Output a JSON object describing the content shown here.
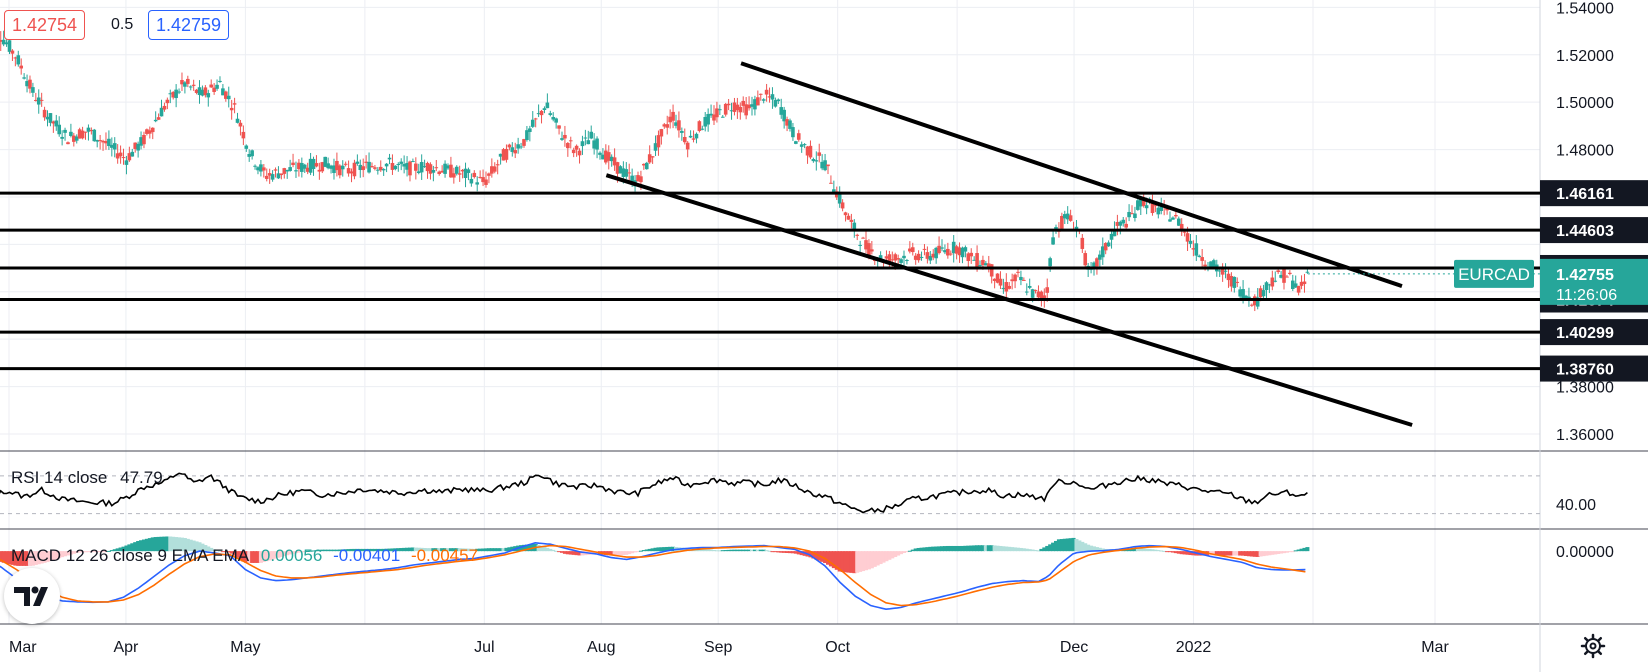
{
  "header": {
    "bid": "1.42754",
    "spread": "0.5",
    "ask": "1.42759"
  },
  "chart_data": {
    "type": "candlestick",
    "symbol": "EURCAD",
    "price_axis": {
      "ticks": [
        "1.54000",
        "1.52000",
        "1.50000",
        "1.48000",
        "1.38000",
        "1.36000"
      ],
      "ylim": [
        1.3562,
        1.5431
      ]
    },
    "time_axis": {
      "labels": [
        "Mar",
        "Apr",
        "May",
        "Jul",
        "Aug",
        "Sep",
        "Oct",
        "Dec",
        "2022",
        "Mar"
      ],
      "domain": [
        0,
        355
      ],
      "label_positions": [
        9,
        55,
        102,
        196,
        242,
        288,
        335,
        428,
        475,
        570
      ]
    },
    "horizontal_levels": [
      "1.46161",
      "1.44603",
      "1.43004",
      "1.41674",
      "1.40299",
      "1.38760"
    ],
    "current_price": {
      "symbol": "EURCAD",
      "price": "1.42755",
      "countdown": "11:26:06"
    },
    "trendlines": [
      {
        "from": [
          297,
          1.5164
        ],
        "to": [
          557,
          1.4224
        ]
      },
      {
        "from": [
          244,
          1.4692
        ],
        "to": [
          561,
          1.3638
        ]
      }
    ],
    "price_path": [
      [
        0,
        1.532
      ],
      [
        6,
        1.528
      ],
      [
        12,
        1.519
      ],
      [
        18,
        1.505
      ],
      [
        25,
        1.493
      ],
      [
        32,
        1.485
      ],
      [
        40,
        1.488
      ],
      [
        48,
        1.482
      ],
      [
        55,
        1.476
      ],
      [
        62,
        1.484
      ],
      [
        70,
        1.498
      ],
      [
        78,
        1.508
      ],
      [
        85,
        1.503
      ],
      [
        92,
        1.508
      ],
      [
        98,
        1.497
      ],
      [
        104,
        1.478
      ],
      [
        110,
        1.469
      ],
      [
        118,
        1.471
      ],
      [
        126,
        1.473
      ],
      [
        134,
        1.474
      ],
      [
        142,
        1.471
      ],
      [
        150,
        1.473
      ],
      [
        158,
        1.474
      ],
      [
        166,
        1.472
      ],
      [
        174,
        1.473
      ],
      [
        182,
        1.471
      ],
      [
        190,
        1.469
      ],
      [
        196,
        1.466
      ],
      [
        204,
        1.478
      ],
      [
        212,
        1.484
      ],
      [
        220,
        1.499
      ],
      [
        226,
        1.487
      ],
      [
        232,
        1.479
      ],
      [
        238,
        1.485
      ],
      [
        244,
        1.477
      ],
      [
        250,
        1.471
      ],
      [
        256,
        1.466
      ],
      [
        262,
        1.478
      ],
      [
        270,
        1.495
      ],
      [
        276,
        1.483
      ],
      [
        282,
        1.491
      ],
      [
        288,
        1.495
      ],
      [
        294,
        1.499
      ],
      [
        300,
        1.497
      ],
      [
        306,
        1.503
      ],
      [
        312,
        1.499
      ],
      [
        318,
        1.486
      ],
      [
        324,
        1.479
      ],
      [
        330,
        1.474
      ],
      [
        335,
        1.461
      ],
      [
        340,
        1.449
      ],
      [
        346,
        1.439
      ],
      [
        352,
        1.434
      ],
      [
        358,
        1.434
      ],
      [
        364,
        1.436
      ],
      [
        370,
        1.435
      ],
      [
        376,
        1.437
      ],
      [
        382,
        1.439
      ],
      [
        388,
        1.434
      ],
      [
        394,
        1.432
      ],
      [
        400,
        1.421
      ],
      [
        406,
        1.426
      ],
      [
        412,
        1.419
      ],
      [
        417,
        1.418
      ],
      [
        420,
        1.445
      ],
      [
        425,
        1.452
      ],
      [
        430,
        1.446
      ],
      [
        434,
        1.426
      ],
      [
        439,
        1.436
      ],
      [
        444,
        1.446
      ],
      [
        450,
        1.451
      ],
      [
        455,
        1.459
      ],
      [
        460,
        1.455
      ],
      [
        465,
        1.453
      ],
      [
        470,
        1.449
      ],
      [
        475,
        1.439
      ],
      [
        480,
        1.433
      ],
      [
        485,
        1.429
      ],
      [
        490,
        1.425
      ],
      [
        495,
        1.419
      ],
      [
        500,
        1.416
      ],
      [
        503,
        1.422
      ],
      [
        507,
        1.426
      ],
      [
        512,
        1.427
      ],
      [
        517,
        1.42
      ],
      [
        520,
        1.4275
      ]
    ],
    "rsi": {
      "label": "RSI 14 close",
      "value": "47.79",
      "ticks": [
        "40.00"
      ],
      "ylim": [
        20,
        90
      ],
      "bands": [
        30,
        70
      ],
      "path": [
        [
          0,
          46
        ],
        [
          8,
          54
        ],
        [
          15,
          48
        ],
        [
          22,
          55
        ],
        [
          30,
          45
        ],
        [
          40,
          42
        ],
        [
          50,
          41
        ],
        [
          55,
          47
        ],
        [
          62,
          58
        ],
        [
          70,
          63
        ],
        [
          76,
          74
        ],
        [
          82,
          62
        ],
        [
          88,
          70
        ],
        [
          94,
          58
        ],
        [
          100,
          47
        ],
        [
          108,
          43
        ],
        [
          116,
          50
        ],
        [
          124,
          54
        ],
        [
          132,
          50
        ],
        [
          140,
          52
        ],
        [
          148,
          56
        ],
        [
          156,
          54
        ],
        [
          164,
          52
        ],
        [
          172,
          55
        ],
        [
          180,
          53
        ],
        [
          188,
          56
        ],
        [
          196,
          54
        ],
        [
          204,
          58
        ],
        [
          212,
          63
        ],
        [
          218,
          72
        ],
        [
          224,
          62
        ],
        [
          232,
          58
        ],
        [
          240,
          60
        ],
        [
          248,
          53
        ],
        [
          256,
          51
        ],
        [
          262,
          60
        ],
        [
          270,
          68
        ],
        [
          276,
          60
        ],
        [
          282,
          64
        ],
        [
          288,
          66
        ],
        [
          294,
          62
        ],
        [
          300,
          63
        ],
        [
          306,
          60
        ],
        [
          312,
          66
        ],
        [
          318,
          60
        ],
        [
          324,
          52
        ],
        [
          330,
          48
        ],
        [
          335,
          42
        ],
        [
          340,
          36
        ],
        [
          346,
          32
        ],
        [
          352,
          34
        ],
        [
          358,
          38
        ],
        [
          364,
          45
        ],
        [
          370,
          47
        ],
        [
          376,
          50
        ],
        [
          382,
          52
        ],
        [
          388,
          54
        ],
        [
          394,
          55
        ],
        [
          400,
          49
        ],
        [
          406,
          50
        ],
        [
          412,
          48
        ],
        [
          417,
          46
        ],
        [
          420,
          63
        ],
        [
          425,
          64
        ],
        [
          430,
          62
        ],
        [
          434,
          55
        ],
        [
          439,
          59
        ],
        [
          444,
          63
        ],
        [
          450,
          66
        ],
        [
          455,
          67
        ],
        [
          460,
          65
        ],
        [
          465,
          61
        ],
        [
          470,
          60
        ],
        [
          475,
          56
        ],
        [
          480,
          54
        ],
        [
          485,
          52
        ],
        [
          490,
          50
        ],
        [
          495,
          44
        ],
        [
          500,
          42
        ],
        [
          503,
          48
        ],
        [
          507,
          51
        ],
        [
          512,
          52
        ],
        [
          517,
          49
        ],
        [
          520,
          50
        ]
      ]
    },
    "macd": {
      "label": "MACD 12 26 close 9 EMA EMA",
      "histogram_value": "0.00056",
      "macd_value": "-0.00401",
      "signal_value": "-0.00457",
      "ticks": [
        "0.00000"
      ],
      "ylim": [
        -0.0145,
        0.0035
      ],
      "series_colors": {
        "macd": "#2962ff",
        "signal": "#ff6d00",
        "hist_up": "#26a69a",
        "hist_down": "#ef5350"
      },
      "path_macd": [
        [
          0,
          -0.0015
        ],
        [
          6,
          -0.0035
        ],
        [
          12,
          -0.006
        ],
        [
          18,
          -0.0085
        ],
        [
          24,
          -0.01
        ],
        [
          30,
          -0.0108
        ],
        [
          36,
          -0.011
        ],
        [
          42,
          -0.0111
        ],
        [
          48,
          -0.011
        ],
        [
          54,
          -0.01
        ],
        [
          60,
          -0.008
        ],
        [
          66,
          -0.0055
        ],
        [
          72,
          -0.003
        ],
        [
          78,
          -0.001
        ],
        [
          84,
          0.0
        ],
        [
          90,
          -0.0004
        ],
        [
          96,
          -0.001
        ],
        [
          102,
          -0.004
        ],
        [
          108,
          -0.0058
        ],
        [
          114,
          -0.0064
        ],
        [
          120,
          -0.0062
        ],
        [
          126,
          -0.0058
        ],
        [
          132,
          -0.0054
        ],
        [
          138,
          -0.005
        ],
        [
          144,
          -0.0046
        ],
        [
          150,
          -0.0043
        ],
        [
          156,
          -0.004
        ],
        [
          162,
          -0.0036
        ],
        [
          168,
          -0.003
        ],
        [
          174,
          -0.0026
        ],
        [
          180,
          -0.0022
        ],
        [
          186,
          -0.0018
        ],
        [
          192,
          -0.0016
        ],
        [
          198,
          -0.001
        ],
        [
          204,
          -0.0004
        ],
        [
          210,
          0.0008
        ],
        [
          216,
          0.0018
        ],
        [
          222,
          0.0015
        ],
        [
          228,
          0.0006
        ],
        [
          234,
          -0.0002
        ],
        [
          240,
          -0.0006
        ],
        [
          246,
          -0.0014
        ],
        [
          252,
          -0.0018
        ],
        [
          258,
          -0.0012
        ],
        [
          264,
          -0.0004
        ],
        [
          270,
          0.0003
        ],
        [
          276,
          0.0006
        ],
        [
          282,
          0.0008
        ],
        [
          288,
          0.0008
        ],
        [
          294,
          0.001
        ],
        [
          300,
          0.0011
        ],
        [
          306,
          0.0012
        ],
        [
          312,
          0.0008
        ],
        [
          318,
          0.0004
        ],
        [
          324,
          -0.0008
        ],
        [
          330,
          -0.0032
        ],
        [
          336,
          -0.0068
        ],
        [
          342,
          -0.0098
        ],
        [
          348,
          -0.0118
        ],
        [
          354,
          -0.0126
        ],
        [
          360,
          -0.0122
        ],
        [
          366,
          -0.0112
        ],
        [
          372,
          -0.0104
        ],
        [
          378,
          -0.0096
        ],
        [
          384,
          -0.0088
        ],
        [
          390,
          -0.0078
        ],
        [
          396,
          -0.007
        ],
        [
          402,
          -0.0066
        ],
        [
          408,
          -0.0064
        ],
        [
          414,
          -0.0066
        ],
        [
          418,
          -0.0054
        ],
        [
          422,
          -0.003
        ],
        [
          428,
          -0.0004
        ],
        [
          434,
          0.0
        ],
        [
          440,
          0.0001
        ],
        [
          446,
          0.0004
        ],
        [
          452,
          0.001
        ],
        [
          458,
          0.0012
        ],
        [
          464,
          0.001
        ],
        [
          470,
          0.0004
        ],
        [
          476,
          -0.0004
        ],
        [
          482,
          -0.0012
        ],
        [
          488,
          -0.0018
        ],
        [
          494,
          -0.0024
        ],
        [
          500,
          -0.0036
        ],
        [
          506,
          -0.004
        ],
        [
          512,
          -0.0041
        ],
        [
          520,
          -0.004
        ]
      ],
      "path_signal": [
        [
          0,
          -0.001
        ],
        [
          6,
          -0.002
        ],
        [
          12,
          -0.004
        ],
        [
          18,
          -0.0065
        ],
        [
          24,
          -0.0085
        ],
        [
          30,
          -0.01
        ],
        [
          36,
          -0.0108
        ],
        [
          42,
          -0.011
        ],
        [
          48,
          -0.011
        ],
        [
          54,
          -0.0106
        ],
        [
          60,
          -0.0094
        ],
        [
          66,
          -0.0074
        ],
        [
          72,
          -0.005
        ],
        [
          78,
          -0.0028
        ],
        [
          84,
          -0.0012
        ],
        [
          90,
          -0.0006
        ],
        [
          96,
          -0.0008
        ],
        [
          102,
          -0.0024
        ],
        [
          108,
          -0.0042
        ],
        [
          114,
          -0.0054
        ],
        [
          120,
          -0.0058
        ],
        [
          126,
          -0.0058
        ],
        [
          132,
          -0.0056
        ],
        [
          138,
          -0.0052
        ],
        [
          144,
          -0.0049
        ],
        [
          150,
          -0.0046
        ],
        [
          156,
          -0.0043
        ],
        [
          162,
          -0.004
        ],
        [
          168,
          -0.0035
        ],
        [
          174,
          -0.003
        ],
        [
          180,
          -0.0026
        ],
        [
          186,
          -0.0022
        ],
        [
          192,
          -0.0019
        ],
        [
          198,
          -0.0014
        ],
        [
          204,
          -0.0008
        ],
        [
          210,
          0.0
        ],
        [
          216,
          0.0008
        ],
        [
          222,
          0.0012
        ],
        [
          228,
          0.001
        ],
        [
          234,
          0.0004
        ],
        [
          240,
          -0.0002
        ],
        [
          246,
          -0.0008
        ],
        [
          252,
          -0.0013
        ],
        [
          258,
          -0.0013
        ],
        [
          264,
          -0.0009
        ],
        [
          270,
          -0.0003
        ],
        [
          276,
          0.0002
        ],
        [
          282,
          0.0005
        ],
        [
          288,
          0.0007
        ],
        [
          294,
          0.0008
        ],
        [
          300,
          0.0009
        ],
        [
          306,
          0.001
        ],
        [
          312,
          0.001
        ],
        [
          318,
          0.0007
        ],
        [
          324,
          0.0
        ],
        [
          330,
          -0.0016
        ],
        [
          336,
          -0.004
        ],
        [
          342,
          -0.0068
        ],
        [
          348,
          -0.0094
        ],
        [
          354,
          -0.0112
        ],
        [
          360,
          -0.0118
        ],
        [
          366,
          -0.0116
        ],
        [
          372,
          -0.011
        ],
        [
          378,
          -0.0103
        ],
        [
          384,
          -0.0095
        ],
        [
          390,
          -0.0086
        ],
        [
          396,
          -0.0078
        ],
        [
          402,
          -0.0072
        ],
        [
          408,
          -0.0068
        ],
        [
          414,
          -0.0067
        ],
        [
          418,
          -0.0062
        ],
        [
          422,
          -0.0046
        ],
        [
          428,
          -0.0022
        ],
        [
          434,
          -0.0008
        ],
        [
          440,
          -0.0002
        ],
        [
          446,
          0.0002
        ],
        [
          452,
          0.0006
        ],
        [
          458,
          0.0009
        ],
        [
          464,
          0.001
        ],
        [
          470,
          0.0008
        ],
        [
          476,
          0.0002
        ],
        [
          482,
          -0.0006
        ],
        [
          488,
          -0.0012
        ],
        [
          494,
          -0.0018
        ],
        [
          500,
          -0.0028
        ],
        [
          506,
          -0.0035
        ],
        [
          512,
          -0.0039
        ],
        [
          520,
          -0.00457
        ]
      ]
    }
  },
  "icons": {
    "logo": "tradingview-logo-icon",
    "settings": "gear-icon"
  }
}
